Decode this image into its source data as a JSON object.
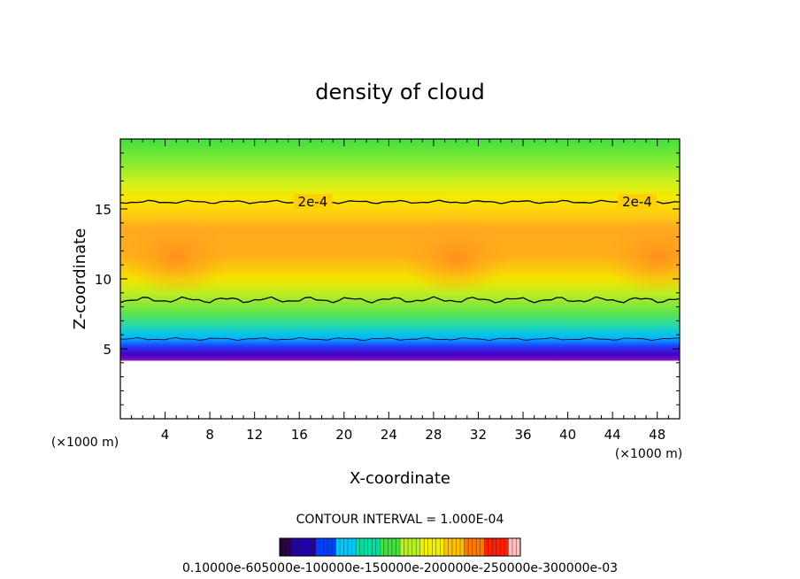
{
  "chart_data": {
    "type": "heatmap",
    "title": "density of cloud",
    "xlabel": "X-coordinate",
    "ylabel": "Z-coordinate",
    "x_unit": "(×1000 m)",
    "y_unit": "(×1000 m)",
    "xlim": [
      0,
      50
    ],
    "ylim": [
      0,
      20
    ],
    "x_ticks": [
      4,
      8,
      12,
      16,
      20,
      24,
      28,
      32,
      36,
      40,
      44,
      48
    ],
    "y_ticks": [
      5,
      10,
      15
    ],
    "contour_interval_text": "CONTOUR INTERVAL = 1.000E-04",
    "contour_labels": [
      {
        "text": "2e-4",
        "x": 17.2,
        "z": 15.5
      },
      {
        "text": "2e-4",
        "x": 46.2,
        "z": 15.5
      }
    ],
    "cloud_layer": {
      "base_z": 4.2,
      "upper_2e-4_contour_z": 15.5,
      "lower_2e-4_contour_z": 8.5,
      "peak_density_x": [
        5,
        30,
        48
      ],
      "peak_density_z": 11.5
    },
    "colorbar": {
      "min": 0.0001,
      "max": 0.003,
      "tick_labels_text": "0.10000e-605000e-100000e-150000e-200000e-250000e-300000e-03",
      "colors": [
        "#2a0047",
        "#2200aa",
        "#0040ff",
        "#00c8ff",
        "#00e0a0",
        "#40e040",
        "#b8f020",
        "#f0f000",
        "#ffc000",
        "#ff7800",
        "#ff1e00",
        "#ffc0c0"
      ]
    },
    "grid": false
  }
}
